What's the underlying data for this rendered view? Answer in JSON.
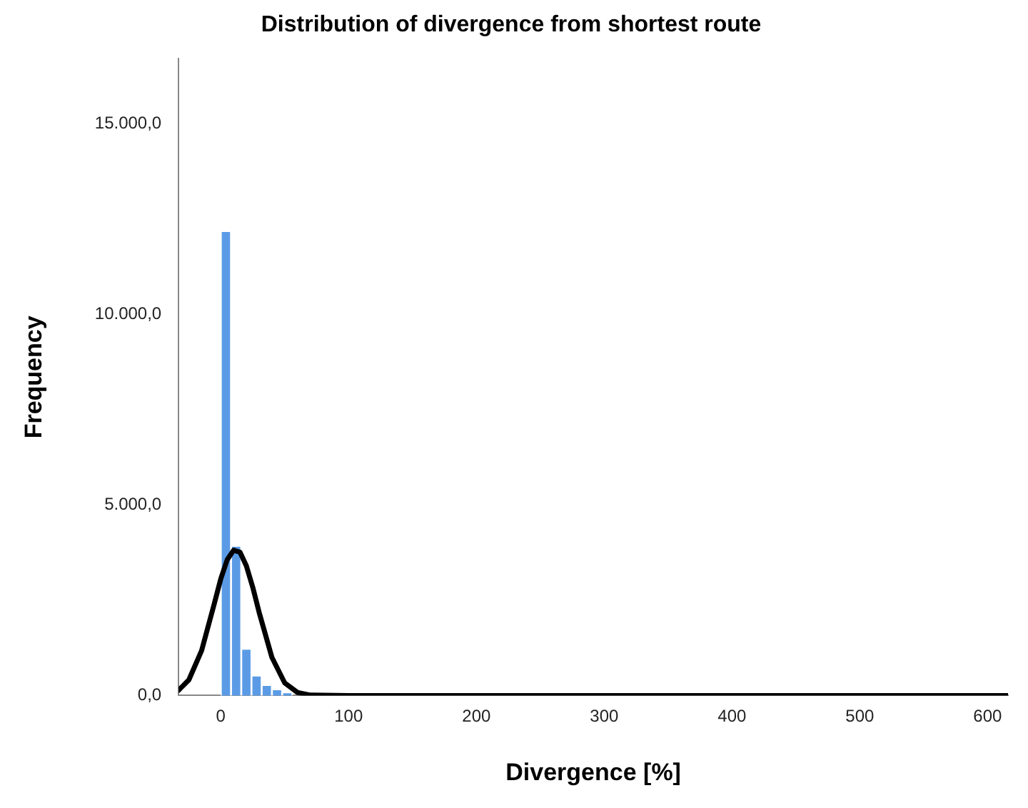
{
  "chart_data": {
    "type": "histogram",
    "title": "Distribution of divergence from shortest route",
    "xlabel": "Divergence [%]",
    "ylabel": "Frequency",
    "xlim": [
      -33,
      616
    ],
    "xticks": [
      0,
      100,
      200,
      300,
      400,
      500,
      600
    ],
    "ylim": [
      0,
      16700
    ],
    "yticks": [
      {
        "value": 0,
        "label": "0,0"
      },
      {
        "value": 5000,
        "label": "5.000,0"
      },
      {
        "value": 10000,
        "label": "10.000,0"
      },
      {
        "value": 15000,
        "label": "15.000,0"
      }
    ],
    "grid": false,
    "legend": false,
    "series": [
      {
        "color": "#5b9be6",
        "bins": [
          0,
          8,
          16,
          24,
          32,
          40,
          48,
          56
        ],
        "values": [
          12160,
          3900,
          1200,
          500,
          250,
          140,
          60
        ]
      },
      {
        "type": "line",
        "color": "#000000",
        "x": [
          -33,
          -25,
          -15,
          -5,
          0,
          5,
          10,
          15,
          20,
          25,
          30,
          40,
          50,
          60,
          70,
          100,
          200,
          300,
          400,
          500,
          616
        ],
        "values": [
          140,
          410,
          1180,
          2420,
          3060,
          3560,
          3810,
          3760,
          3400,
          2840,
          2180,
          1000,
          330,
          80,
          10,
          0,
          0,
          0,
          0,
          0,
          0
        ]
      }
    ]
  }
}
